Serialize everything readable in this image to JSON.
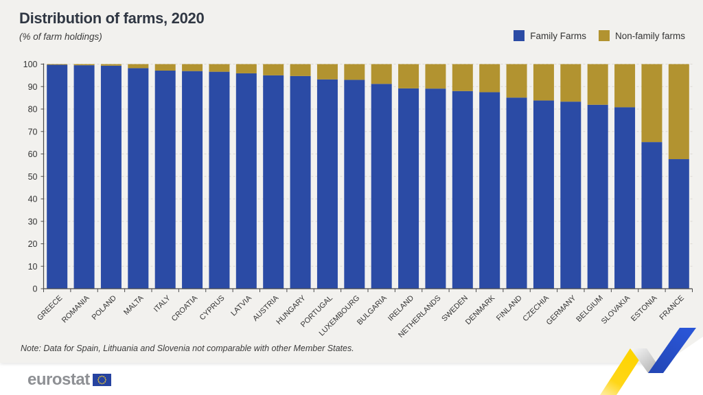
{
  "header": {
    "title": "Distribution of farms, 2020",
    "subtitle": "(% of farm holdings)"
  },
  "legend": {
    "items": [
      {
        "label": "Family Farms",
        "color": "#2b4ba5"
      },
      {
        "label": "Non-family farms",
        "color": "#b29330"
      }
    ]
  },
  "chart_data": {
    "type": "bar",
    "stacked": true,
    "title": "Distribution of farms, 2020",
    "subtitle": "(% of farm holdings)",
    "categories": [
      "GREECE",
      "ROMANIA",
      "POLAND",
      "MALTA",
      "ITALY",
      "CROATIA",
      "CYPRUS",
      "LATVIA",
      "AUSTRIA",
      "HUNGARY",
      "PORTUGAL",
      "LUXEMBOURG",
      "BULGARIA",
      "IRELAND",
      "NETHERLANDS",
      "SWEDEN",
      "DENMARK",
      "FINLAND",
      "CZECHIA",
      "GERMANY",
      "BELGIUM",
      "SLOVAKIA",
      "ESTONIA",
      "FRANCE"
    ],
    "series": [
      {
        "name": "Family Farms",
        "color": "#2b4ba5",
        "values": [
          99.7,
          99.5,
          99.3,
          98.2,
          97.1,
          96.9,
          96.6,
          95.9,
          95.0,
          94.7,
          93.2,
          93.0,
          91.2,
          89.2,
          89.1,
          88.0,
          87.5,
          85.1,
          83.8,
          83.3,
          81.9,
          80.8,
          65.3,
          57.7
        ]
      },
      {
        "name": "Non-family farms",
        "color": "#b29330",
        "values": [
          0.3,
          0.5,
          0.7,
          1.8,
          2.9,
          3.1,
          3.4,
          4.1,
          5.0,
          5.3,
          6.8,
          7.0,
          8.8,
          10.8,
          10.9,
          12.0,
          12.5,
          14.9,
          16.2,
          16.7,
          18.1,
          19.2,
          34.7,
          42.3
        ]
      }
    ],
    "ylim": [
      0,
      100
    ],
    "ytick_step": 10,
    "grid": true,
    "legend_position": "top-right"
  },
  "note": "Note: Data for Spain, Lithuania and Slovenia not comparable with other Member States.",
  "footer": {
    "logo_text": "eurostat"
  },
  "colors": {
    "background": "#f2f1ee",
    "family_blue": "#2b4ba5",
    "nonfamily_gold": "#b29330",
    "axis": "#4a4a4a",
    "gridline": "#dbd8d2",
    "flag_blue": "#2643a0",
    "flag_star_yellow": "#f8d12e",
    "ribbon_yellow": "#fdd400",
    "ribbon_blue": "#2a52cc"
  }
}
